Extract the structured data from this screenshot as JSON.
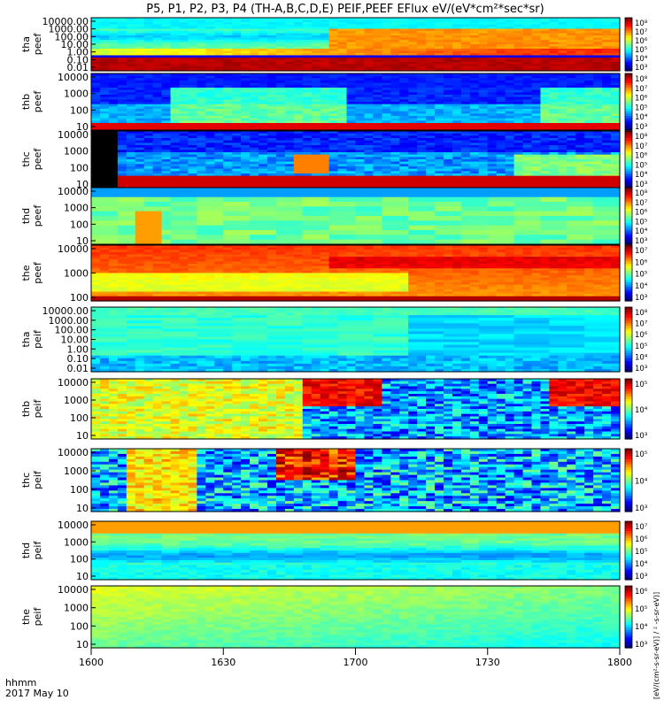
{
  "title": "P5, P1, P2, P3, P4 (TH-A,B,C,D,E) PEIF,PEEF EFlux eV/(eV*cm²*sec*sr)",
  "chart_data": {
    "type": "heatmap",
    "title": "P5, P1, P2, P3, P4 (TH-A,B,C,D,E) PEIF,PEEF EFlux eV/(eV*cm²*sec*sr)",
    "x_axis": {
      "ticks": [
        "1600",
        "1630",
        "1700",
        "1730",
        "1800"
      ],
      "label_line1": "hhmm",
      "label_line2": "2017 May 10",
      "range": [
        "16:00",
        "18:00"
      ]
    },
    "colorbar_label": "[eV/(cm²-s-sr-eV)] / ² -s-sr-eV)]",
    "panels": [
      {
        "probe": "tha",
        "product": "peef",
        "ylabel_1": "tha",
        "ylabel_2": "peef",
        "y_ticks": [
          "10000.00",
          "1000.00",
          "100.00",
          "10.00",
          "1.00",
          "0.10",
          "0.01"
        ],
        "colorbar_ticks": [
          "10⁸",
          "10⁷",
          "10⁶",
          "10⁵",
          "10⁴",
          "10³"
        ]
      },
      {
        "probe": "thb",
        "product": "peef",
        "ylabel_1": "thb",
        "ylabel_2": "peef",
        "y_ticks": [
          "10000",
          "1000",
          "100",
          "10"
        ],
        "colorbar_ticks": [
          "10⁸",
          "10⁷",
          "10⁶",
          "10⁵",
          "10⁴",
          "10³"
        ]
      },
      {
        "probe": "thc",
        "product": "peef",
        "ylabel_1": "thc",
        "ylabel_2": "peef",
        "y_ticks": [
          "10000",
          "1000",
          "100",
          "10"
        ],
        "colorbar_ticks": [
          "10⁸",
          "10⁷",
          "10⁶",
          "10⁵",
          "10⁴",
          "10³"
        ]
      },
      {
        "probe": "thd",
        "product": "peef",
        "ylabel_1": "thd",
        "ylabel_2": "peef",
        "y_ticks": [
          "10000",
          "1000",
          "100",
          "10"
        ],
        "colorbar_ticks": [
          "10⁸",
          "10⁷",
          "10⁶",
          "10⁵",
          "10⁴",
          "10³"
        ]
      },
      {
        "probe": "the",
        "product": "peef",
        "ylabel_1": "the",
        "ylabel_2": "peef",
        "y_ticks": [
          "10000",
          "1000",
          "100"
        ],
        "colorbar_ticks": [
          "10⁷",
          "10⁶",
          "10⁵",
          "10⁴",
          "10³"
        ]
      },
      {
        "probe": "tha",
        "product": "peif",
        "ylabel_1": "tha",
        "ylabel_2": "peif",
        "y_ticks": [
          "10000.00",
          "1000.00",
          "100.00",
          "10.00",
          "1.00",
          "0.10",
          "0.01"
        ],
        "colorbar_ticks": [
          "10⁸",
          "10⁷",
          "10⁶",
          "10⁵",
          "10⁴",
          "10³"
        ]
      },
      {
        "probe": "thb",
        "product": "peif",
        "ylabel_1": "thb",
        "ylabel_2": "peif",
        "y_ticks": [
          "10000",
          "1000",
          "100",
          "10"
        ],
        "colorbar_ticks": [
          "10⁵",
          "10⁴",
          "10³"
        ]
      },
      {
        "probe": "thc",
        "product": "peif",
        "ylabel_1": "thc",
        "ylabel_2": "peif",
        "y_ticks": [
          "10000",
          "1000",
          "100",
          "10"
        ],
        "colorbar_ticks": [
          "10⁵",
          "10⁴",
          "10³"
        ]
      },
      {
        "probe": "thd",
        "product": "peif",
        "ylabel_1": "thd",
        "ylabel_2": "peif",
        "y_ticks": [
          "10000",
          "1000",
          "100",
          "10"
        ],
        "colorbar_ticks": [
          "10⁷",
          "10⁶",
          "10⁵",
          "10⁴",
          "10³"
        ]
      },
      {
        "probe": "the",
        "product": "peif",
        "ylabel_1": "the",
        "ylabel_2": "peif",
        "y_ticks": [
          "10000",
          "1000",
          "100",
          "10"
        ],
        "colorbar_ticks": [
          "10⁶",
          "10⁵",
          "10⁴",
          "10³"
        ]
      }
    ]
  }
}
